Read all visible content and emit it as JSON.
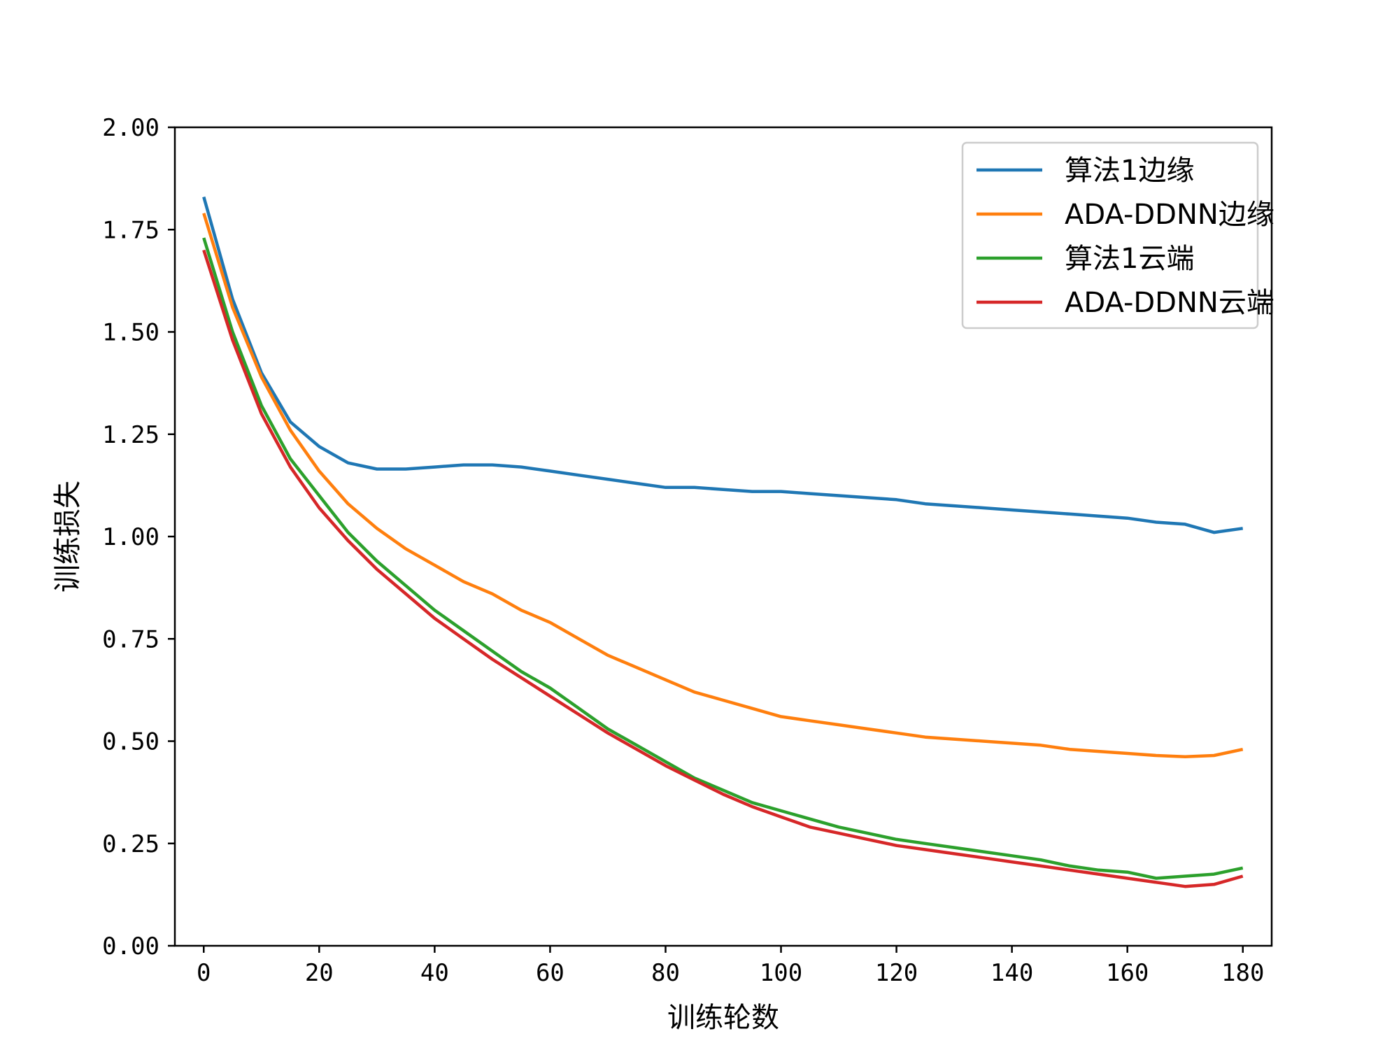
{
  "chart_data": {
    "type": "line",
    "xlabel": "训练轮数",
    "ylabel": "训练损失",
    "xlim": [
      -5,
      185
    ],
    "ylim": [
      0,
      2.0
    ],
    "xticks": [
      0,
      20,
      40,
      60,
      80,
      100,
      120,
      140,
      160,
      180
    ],
    "yticks": [
      "0.00",
      "0.25",
      "0.50",
      "0.75",
      "1.00",
      "1.25",
      "1.50",
      "1.75",
      "2.00"
    ],
    "grid": false,
    "legend_position": "top-right",
    "series": [
      {
        "name": "算法1边缘",
        "color": "#1f77b4",
        "x": [
          0,
          5,
          10,
          15,
          20,
          25,
          30,
          35,
          40,
          45,
          50,
          55,
          60,
          65,
          70,
          75,
          80,
          85,
          90,
          95,
          100,
          105,
          110,
          115,
          120,
          125,
          130,
          135,
          140,
          145,
          150,
          155,
          160,
          165,
          170,
          175,
          180
        ],
        "y": [
          1.83,
          1.58,
          1.4,
          1.28,
          1.22,
          1.18,
          1.165,
          1.165,
          1.17,
          1.175,
          1.175,
          1.17,
          1.16,
          1.15,
          1.14,
          1.13,
          1.12,
          1.12,
          1.115,
          1.11,
          1.11,
          1.105,
          1.1,
          1.095,
          1.09,
          1.08,
          1.075,
          1.07,
          1.065,
          1.06,
          1.055,
          1.05,
          1.045,
          1.035,
          1.03,
          1.01,
          1.02
        ]
      },
      {
        "name": "ADA-DDNN边缘",
        "color": "#ff7f0e",
        "x": [
          0,
          5,
          10,
          15,
          20,
          25,
          30,
          35,
          40,
          45,
          50,
          55,
          60,
          65,
          70,
          75,
          80,
          85,
          90,
          95,
          100,
          105,
          110,
          115,
          120,
          125,
          130,
          135,
          140,
          145,
          150,
          155,
          160,
          165,
          170,
          175,
          180
        ],
        "y": [
          1.79,
          1.56,
          1.39,
          1.26,
          1.16,
          1.08,
          1.02,
          0.97,
          0.93,
          0.89,
          0.86,
          0.82,
          0.79,
          0.75,
          0.71,
          0.68,
          0.65,
          0.62,
          0.6,
          0.58,
          0.56,
          0.55,
          0.54,
          0.53,
          0.52,
          0.51,
          0.505,
          0.5,
          0.495,
          0.49,
          0.48,
          0.475,
          0.47,
          0.465,
          0.462,
          0.465,
          0.48
        ]
      },
      {
        "name": "算法1云端",
        "color": "#2ca02c",
        "x": [
          0,
          5,
          10,
          15,
          20,
          25,
          30,
          35,
          40,
          45,
          50,
          55,
          60,
          65,
          70,
          75,
          80,
          85,
          90,
          95,
          100,
          105,
          110,
          115,
          120,
          125,
          130,
          135,
          140,
          145,
          150,
          155,
          160,
          165,
          170,
          175,
          180
        ],
        "y": [
          1.73,
          1.5,
          1.32,
          1.19,
          1.1,
          1.01,
          0.94,
          0.88,
          0.82,
          0.77,
          0.72,
          0.67,
          0.63,
          0.58,
          0.53,
          0.49,
          0.45,
          0.41,
          0.38,
          0.35,
          0.33,
          0.31,
          0.29,
          0.275,
          0.26,
          0.25,
          0.24,
          0.23,
          0.22,
          0.21,
          0.195,
          0.185,
          0.18,
          0.165,
          0.17,
          0.175,
          0.19
        ]
      },
      {
        "name": "ADA-DDNN云端",
        "color": "#d62728",
        "x": [
          0,
          5,
          10,
          15,
          20,
          25,
          30,
          35,
          40,
          45,
          50,
          55,
          60,
          65,
          70,
          75,
          80,
          85,
          90,
          95,
          100,
          105,
          110,
          115,
          120,
          125,
          130,
          135,
          140,
          145,
          150,
          155,
          160,
          165,
          170,
          175,
          180
        ],
        "y": [
          1.7,
          1.48,
          1.3,
          1.17,
          1.07,
          0.99,
          0.92,
          0.86,
          0.8,
          0.75,
          0.7,
          0.655,
          0.61,
          0.565,
          0.52,
          0.48,
          0.44,
          0.405,
          0.37,
          0.34,
          0.315,
          0.29,
          0.275,
          0.26,
          0.245,
          0.235,
          0.225,
          0.215,
          0.205,
          0.195,
          0.185,
          0.175,
          0.165,
          0.155,
          0.145,
          0.15,
          0.17
        ]
      }
    ]
  }
}
